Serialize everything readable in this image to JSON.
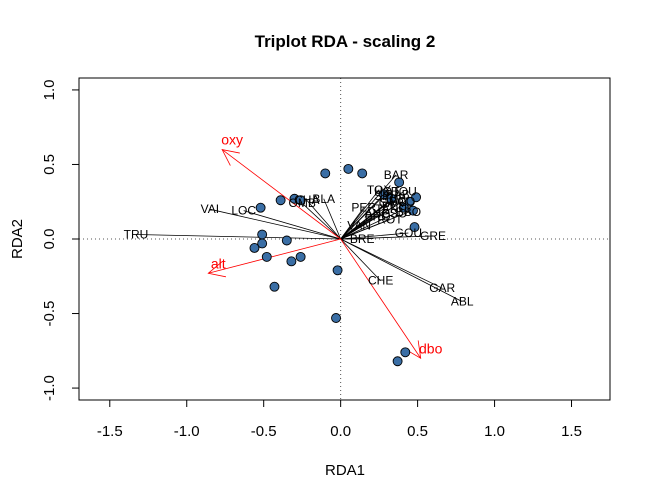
{
  "chart_data": {
    "type": "scatter",
    "title": "Triplot RDA - scaling 2",
    "xlabel": "RDA1",
    "ylabel": "RDA2",
    "xlim": [
      -1.7,
      1.75
    ],
    "ylim": [
      -1.08,
      1.08
    ],
    "x_ticks": [
      -1.5,
      -1.0,
      -0.5,
      0.0,
      0.5,
      1.0,
      1.5
    ],
    "x_tick_labels": [
      "-1.5",
      "-1.0",
      "-0.5",
      "0.0",
      "0.5",
      "1.0",
      "1.5"
    ],
    "y_ticks": [
      -1.0,
      -0.5,
      0.0,
      0.5,
      1.0
    ],
    "y_tick_labels": [
      "-1.0",
      "-0.5",
      "0.0",
      "0.5",
      "1.0"
    ],
    "zero_lines": "dotted",
    "colors": {
      "sites": "#3a6ea5",
      "species": "#000000",
      "environment": "#ff0000"
    },
    "sites": [
      {
        "x": -0.1,
        "y": 0.44
      },
      {
        "x": 0.05,
        "y": 0.47
      },
      {
        "x": 0.14,
        "y": 0.44
      },
      {
        "x": 0.38,
        "y": 0.38
      },
      {
        "x": 0.28,
        "y": 0.3
      },
      {
        "x": 0.33,
        "y": 0.27
      },
      {
        "x": 0.45,
        "y": 0.25
      },
      {
        "x": 0.49,
        "y": 0.28
      },
      {
        "x": 0.41,
        "y": 0.21
      },
      {
        "x": 0.47,
        "y": 0.19
      },
      {
        "x": -0.3,
        "y": 0.27
      },
      {
        "x": -0.26,
        "y": 0.26
      },
      {
        "x": -0.39,
        "y": 0.26
      },
      {
        "x": -0.52,
        "y": 0.21
      },
      {
        "x": -0.51,
        "y": 0.03
      },
      {
        "x": -0.51,
        "y": -0.03
      },
      {
        "x": -0.56,
        "y": -0.06
      },
      {
        "x": -0.35,
        "y": -0.01
      },
      {
        "x": -0.48,
        "y": -0.12
      },
      {
        "x": -0.32,
        "y": -0.15
      },
      {
        "x": -0.26,
        "y": -0.12
      },
      {
        "x": -0.43,
        "y": -0.32
      },
      {
        "x": -0.02,
        "y": -0.21
      },
      {
        "x": 0.48,
        "y": 0.08
      },
      {
        "x": -0.03,
        "y": -0.53
      },
      {
        "x": 0.42,
        "y": -0.76
      },
      {
        "x": 0.37,
        "y": -0.82
      }
    ],
    "species": [
      {
        "name": "TRU",
        "x": -1.33,
        "y": 0.03
      },
      {
        "name": "VAI",
        "x": -0.85,
        "y": 0.2
      },
      {
        "name": "LOC",
        "x": -0.63,
        "y": 0.19
      },
      {
        "name": "OMB",
        "x": -0.25,
        "y": 0.24
      },
      {
        "name": "CHA",
        "x": -0.22,
        "y": 0.26
      },
      {
        "name": "BLA",
        "x": -0.11,
        "y": 0.27
      },
      {
        "name": "BAR",
        "x": 0.36,
        "y": 0.43
      },
      {
        "name": "TOX",
        "x": 0.25,
        "y": 0.33
      },
      {
        "name": "HOT",
        "x": 0.3,
        "y": 0.32
      },
      {
        "name": "SPI",
        "x": 0.28,
        "y": 0.29
      },
      {
        "name": "BOU",
        "x": 0.41,
        "y": 0.32
      },
      {
        "name": "BAB",
        "x": 0.37,
        "y": 0.3
      },
      {
        "name": "GOB",
        "x": 0.34,
        "y": 0.27
      },
      {
        "name": "CAR",
        "x": 0.33,
        "y": 0.24
      },
      {
        "name": "BCO",
        "x": 0.4,
        "y": 0.25
      },
      {
        "name": "PCH",
        "x": 0.35,
        "y": 0.22
      },
      {
        "name": "PER",
        "x": 0.15,
        "y": 0.21
      },
      {
        "name": "TAN",
        "x": 0.3,
        "y": 0.2
      },
      {
        "name": "ANG",
        "x": 0.24,
        "y": 0.17
      },
      {
        "name": "BBO",
        "x": 0.44,
        "y": 0.18
      },
      {
        "name": "BRO",
        "x": 0.24,
        "y": 0.15
      },
      {
        "name": "PSO",
        "x": 0.35,
        "y": 0.17
      },
      {
        "name": "ROT",
        "x": 0.32,
        "y": 0.13
      },
      {
        "name": "GRE",
        "x": 0.6,
        "y": 0.02
      },
      {
        "name": "GOU",
        "x": 0.44,
        "y": 0.04
      },
      {
        "name": "VAN",
        "x": 0.12,
        "y": 0.09
      },
      {
        "name": "BRE",
        "x": 0.14,
        "y": 0.0
      },
      {
        "name": "CHE",
        "x": 0.26,
        "y": -0.28
      },
      {
        "name": "GAR",
        "x": 0.66,
        "y": -0.33
      },
      {
        "name": "ABL",
        "x": 0.79,
        "y": -0.42
      }
    ],
    "environment": [
      {
        "name": "oxy",
        "x": -0.77,
        "y": 0.6
      },
      {
        "name": "alt",
        "x": -0.86,
        "y": -0.23
      },
      {
        "name": "dbo",
        "x": 0.52,
        "y": -0.8
      }
    ]
  }
}
